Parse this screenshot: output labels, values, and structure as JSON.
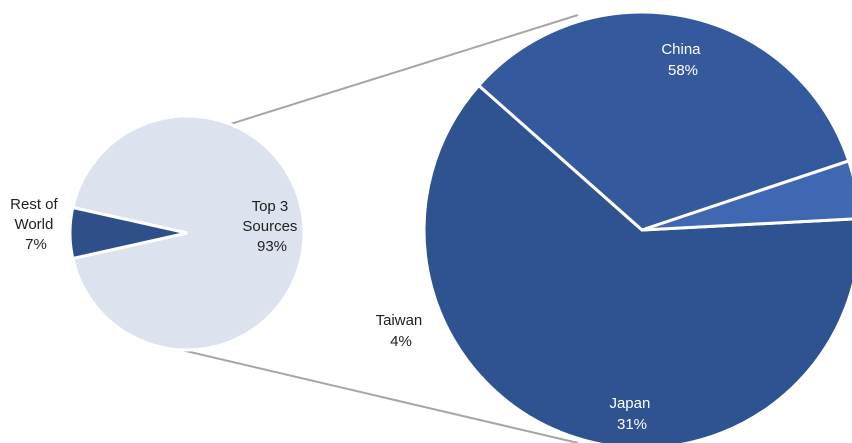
{
  "chart_data": [
    {
      "type": "pie",
      "role": "overview",
      "slices": [
        {
          "label": [
            "Top 3",
            "Sources",
            "93%"
          ],
          "value": 93,
          "color": "#dde2ef"
        },
        {
          "label": [
            "Rest of",
            "World",
            "7%"
          ],
          "value": 7,
          "color": "#2f4f8a"
        }
      ]
    },
    {
      "type": "pie",
      "role": "breakdown-of-top-3-sources",
      "slices": [
        {
          "label": [
            "China",
            "58%"
          ],
          "value": 58,
          "color": "#2f5391"
        },
        {
          "label": [
            "Japan",
            "31%"
          ],
          "value": 31,
          "color": "#35599d"
        },
        {
          "label": [
            "Taiwan",
            "4%"
          ],
          "value": 4,
          "color": "#4067b1"
        }
      ]
    }
  ],
  "colors": {
    "connector": "#a6a6a6",
    "separator": "#ffffff"
  }
}
